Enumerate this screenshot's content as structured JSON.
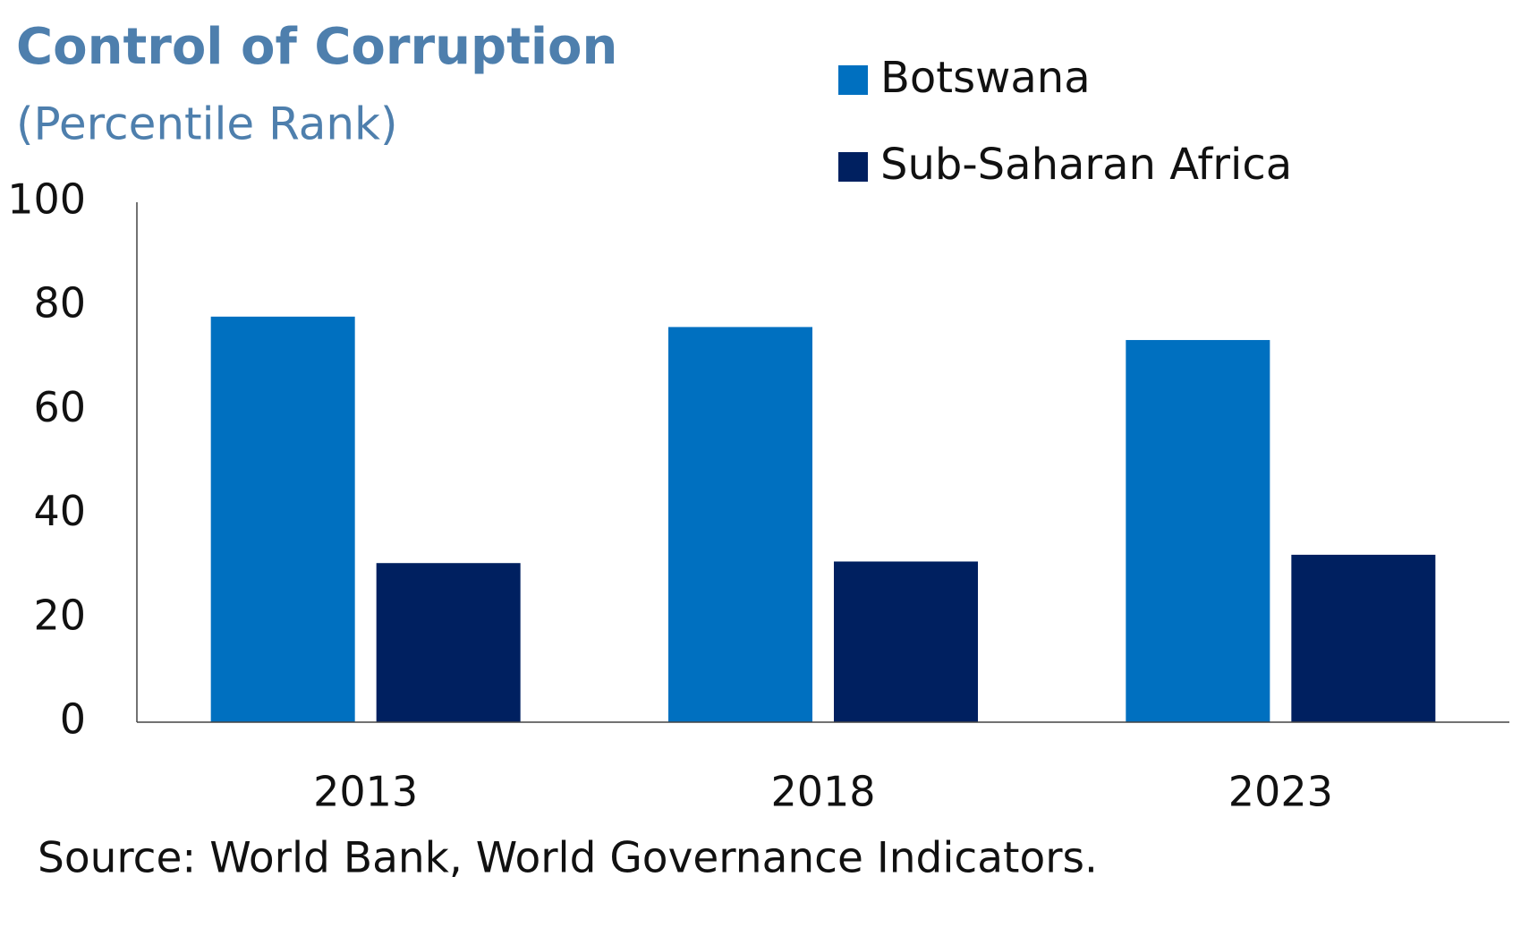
{
  "chart_data": {
    "type": "bar",
    "title": "Control of Corruption",
    "subtitle": "(Percentile Rank)",
    "categories": [
      "2013",
      "2018",
      "2023"
    ],
    "series": [
      {
        "name": "Botswana",
        "color": "#0070c0",
        "values": [
          78,
          76,
          73.5
        ]
      },
      {
        "name": "Sub-Saharan Africa",
        "color": "#002060",
        "values": [
          30.6,
          30.9,
          32.2
        ]
      }
    ],
    "ylim": [
      0,
      100
    ],
    "yticks": [
      0,
      20,
      40,
      60,
      80,
      100
    ],
    "source": "Source: World Bank, World Governance Indicators."
  }
}
